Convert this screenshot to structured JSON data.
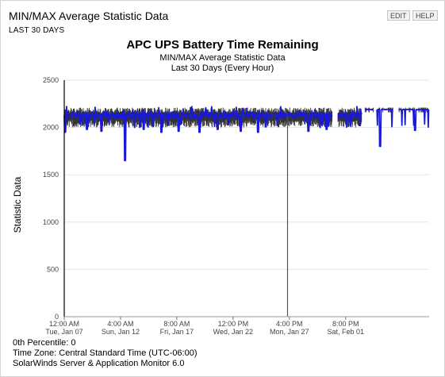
{
  "widget": {
    "title": "MIN/MAX Average Statistic Data",
    "subtitle": "LAST 30 DAYS",
    "buttons": {
      "edit": "EDIT",
      "help": "HELP"
    }
  },
  "chart_data": {
    "type": "line",
    "title": "APC UPS Battery Time Remaining",
    "subtitle": "MIN/MAX Average Statistic Data",
    "subtitle2": "Last 30 Days (Every Hour)",
    "ylabel": "Statistic Data",
    "ylim": [
      0,
      2500
    ],
    "yticks": [
      "0",
      "500",
      "1000",
      "1500",
      "2000",
      "2500"
    ],
    "yticks_values": [
      0,
      500,
      1000,
      1500,
      2000,
      2500
    ],
    "xticks": [
      {
        "time": "12:00 AM",
        "date": "Tue, Jan 07"
      },
      {
        "time": "4:00 AM",
        "date": "Sun, Jan 12"
      },
      {
        "time": "8:00 AM",
        "date": "Fri, Jan 17"
      },
      {
        "time": "12:00 PM",
        "date": "Wed, Jan 22"
      },
      {
        "time": "4:00 PM",
        "date": "Mon, Jan 27"
      },
      {
        "time": "8:00 PM",
        "date": "Sat, Feb 01"
      }
    ],
    "xlim_days": [
      0,
      33.5
    ],
    "xticks_days": [
      0,
      5.1667,
      10.3333,
      15.5,
      20.6667,
      25.8333
    ],
    "grid": true,
    "series": [
      {
        "name": "",
        "kind": "range",
        "color": "#333333",
        "typical_min": 2040,
        "typical_max": 2180
      },
      {
        "name": "",
        "kind": "average",
        "color": "#1a1ad6",
        "typical_value": 2130
      }
    ],
    "gaps_days": [
      [
        24.6,
        25.1
      ],
      [
        27.3,
        27.6
      ],
      [
        28.4,
        28.7
      ],
      [
        30.2,
        30.7
      ]
    ],
    "dips": [
      {
        "day": 0.1,
        "value": 1950
      },
      {
        "day": 2.1,
        "value": 1980
      },
      {
        "day": 3.4,
        "value": 1960
      },
      {
        "day": 5.6,
        "value": 1650
      },
      {
        "day": 7.3,
        "value": 1980
      },
      {
        "day": 8.9,
        "value": 1950
      },
      {
        "day": 10.5,
        "value": 1960
      },
      {
        "day": 12.4,
        "value": 1950
      },
      {
        "day": 14.1,
        "value": 1980
      },
      {
        "day": 16.2,
        "value": 1960
      },
      {
        "day": 17.8,
        "value": 1950
      },
      {
        "day": 20.5,
        "value": 0
      },
      {
        "day": 22.4,
        "value": 1960
      },
      {
        "day": 24.1,
        "value": 1980
      },
      {
        "day": 29.0,
        "value": 1800
      },
      {
        "day": 32.2,
        "value": 1970
      }
    ]
  },
  "footer": {
    "percentile": "0th Percentile: 0",
    "timezone": "Time Zone: Central Standard Time (UTC-06:00)",
    "product": "SolarWinds Server & Application Monitor  6.0"
  }
}
